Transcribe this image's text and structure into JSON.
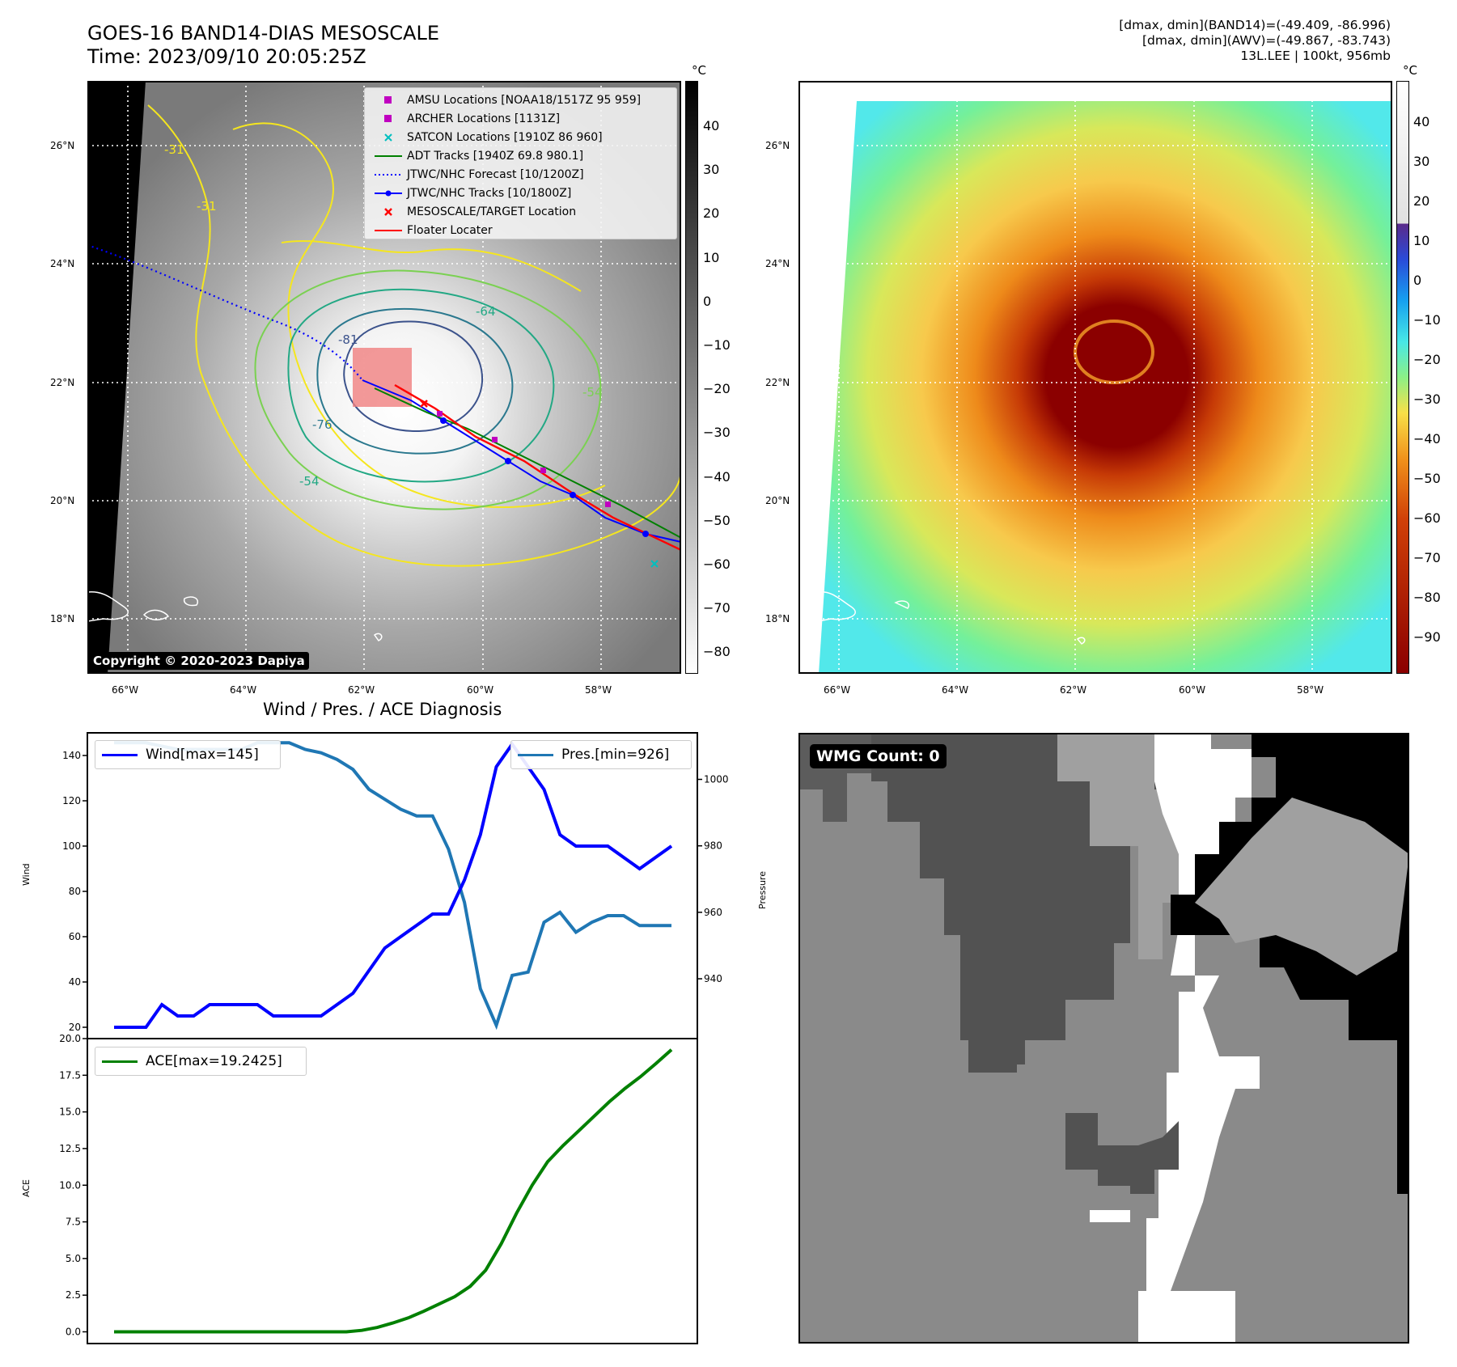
{
  "header": {
    "title_line1": "GOES-16 BAND14-DIAS MESOSCALE",
    "title_line2": "Time: 2023/09/10 20:05:25Z",
    "right_line1": "[dmax, dmin](BAND14)=(-49.409, -86.996)",
    "right_line2": "[dmax, dmin](AWV)=(-49.867, -83.743)",
    "right_line3": "13L.LEE | 100kt, 956mb"
  },
  "map": {
    "lat_labels": [
      "26°N",
      "24°N",
      "22°N",
      "20°N",
      "18°N"
    ],
    "lon_labels": [
      "66°W",
      "64°W",
      "62°W",
      "60°W",
      "58°W"
    ],
    "contour_labels": [
      "-81",
      "-76",
      "-64",
      "-54",
      "-54",
      "-31",
      "-31"
    ],
    "copyright": "Copyright © 2020-2023 Dapiya",
    "legend": [
      {
        "label": "AMSU Locations [NOAA18/1517Z 95 959]",
        "color": "#c000c0",
        "marker": "square"
      },
      {
        "label": "ARCHER Locations [1131Z]",
        "color": "#c000c0",
        "marker": "square"
      },
      {
        "label": "SATCON Locations [1910Z 86 960]",
        "color": "#00bfbf",
        "marker": "x"
      },
      {
        "label": "ADT Tracks [1940Z 69.8 980.1]",
        "color": "#008000",
        "marker": "line"
      },
      {
        "label": "JTWC/NHC Forecast [10/1200Z]",
        "color": "#0000ff",
        "marker": "dotted"
      },
      {
        "label": "JTWC/NHC Tracks [10/1800Z]",
        "color": "#0000ff",
        "marker": "line-dot"
      },
      {
        "label": "MESOSCALE/TARGET Location",
        "color": "#ff0000",
        "marker": "x"
      },
      {
        "label": "Floater Locater",
        "color": "#ff0000",
        "marker": "line"
      }
    ]
  },
  "colorbar_left": {
    "unit": "°C",
    "ticks": [
      "40",
      "30",
      "20",
      "10",
      "0",
      "−10",
      "−20",
      "−30",
      "−40",
      "−50",
      "−60",
      "−70",
      "−80"
    ]
  },
  "colorbar_right": {
    "unit": "°C",
    "ticks": [
      "40",
      "30",
      "20",
      "10",
      "0",
      "−10",
      "−20",
      "−30",
      "−40",
      "−50",
      "−60",
      "−70",
      "−80",
      "−90"
    ]
  },
  "diagnosis": {
    "title": "Wind / Pres. / ACE Diagnosis",
    "wind_axis_label": "Wind",
    "pressure_axis_label": "Pressure",
    "ace_axis_label": "ACE",
    "wind_legend": "Wind[max=145]",
    "pressure_legend": "Pres.[min=926]",
    "ace_legend": "ACE[max=19.2425]",
    "wind_ticks": [
      "140",
      "120",
      "100",
      "80",
      "60",
      "40",
      "20"
    ],
    "pressure_ticks": [
      "1000",
      "980",
      "960",
      "940"
    ],
    "ace_ticks": [
      "20.0",
      "17.5",
      "15.0",
      "12.5",
      "10.0",
      "7.5",
      "5.0",
      "2.5",
      "0.0"
    ]
  },
  "wmg": {
    "label": "WMG Count: 0"
  },
  "chart_data": [
    {
      "type": "line",
      "title": "Wind / Pres. / ACE Diagnosis",
      "ylabel": "Wind",
      "y2label": "Pressure",
      "ylim": [
        15,
        150
      ],
      "y2lim": [
        922,
        1014
      ],
      "series": [
        {
          "name": "Wind[max=145]",
          "color": "#0000ff",
          "axis": "left",
          "values": [
            20,
            20,
            20,
            30,
            25,
            25,
            30,
            30,
            30,
            30,
            25,
            25,
            25,
            25,
            30,
            35,
            45,
            55,
            60,
            65,
            70,
            70,
            85,
            105,
            135,
            145,
            135,
            125,
            105,
            100,
            100,
            100,
            95,
            90,
            95,
            100
          ]
        },
        {
          "name": "Pres.[min=926]",
          "color": "#1f77b4",
          "axis": "right",
          "values": [
            1011,
            1011,
            1011,
            1010,
            1009,
            1009,
            1009,
            1009,
            1009,
            1011,
            1011,
            1011,
            1009,
            1008,
            1006,
            1003,
            997,
            994,
            991,
            989,
            989,
            979,
            963,
            937,
            926,
            941,
            942,
            957,
            960,
            954,
            957,
            959,
            959,
            956,
            956,
            956
          ]
        }
      ]
    },
    {
      "type": "line",
      "ylabel": "ACE",
      "ylim": [
        -0.8,
        20.0
      ],
      "series": [
        {
          "name": "ACE[max=19.2425]",
          "color": "#008000",
          "values": [
            0,
            0,
            0,
            0,
            0,
            0,
            0,
            0,
            0,
            0,
            0,
            0,
            0,
            0,
            0,
            0,
            0.1,
            0.3,
            0.6,
            0.95,
            1.4,
            1.9,
            2.4,
            3.1,
            4.2,
            6.0,
            8.1,
            10.0,
            11.6,
            12.7,
            13.7,
            14.7,
            15.7,
            16.6,
            17.4,
            18.3,
            19.24
          ]
        }
      ]
    }
  ]
}
